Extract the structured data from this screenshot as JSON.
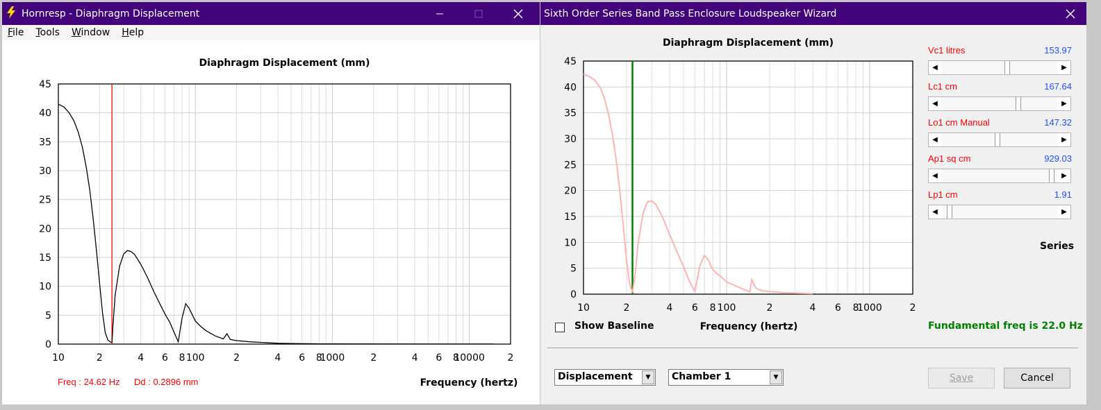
{
  "win1": {
    "title": "Hornresp - Diaphragm Displacement",
    "menu": [
      "File",
      "Tools",
      "Window",
      "Help"
    ],
    "chart_title": "Diaphragm Displacement (mm)",
    "x_label": "Frequency (hertz)",
    "readout_freq": "Freq : 24.62 Hz",
    "readout_dd": "Dd : 0.2896 mm"
  },
  "win2": {
    "title": "Sixth Order Series Band Pass Enclosure Loudspeaker Wizard",
    "chart_title": "Diaphragm Displacement (mm)",
    "x_label": "Frequency (hertz)",
    "show_baseline": "Show Baseline",
    "params": [
      {
        "label": "Vc1  litres",
        "value": "153.97",
        "fraction": 0.57
      },
      {
        "label": "Lc1  cm",
        "value": "167.64",
        "fraction": 0.67
      },
      {
        "label": "Lo1  cm  Manual",
        "value": "147.32",
        "fraction": 0.48
      },
      {
        "label": "Ap1  sq cm",
        "value": "929.03",
        "fraction": 0.97
      },
      {
        "label": "Lp1  cm",
        "value": "1.91",
        "fraction": 0.05
      }
    ],
    "series_label": "Series",
    "fundamental": "Fundamental freq is 22.0 Hz",
    "dropdown_left": "Displacement",
    "dropdown_right": "Chamber 1",
    "save_label": "Save",
    "cancel_label": "Cancel"
  },
  "chart_data": [
    {
      "type": "line",
      "title": "Diaphragm Displacement (mm)",
      "xlabel": "Frequency (hertz)",
      "ylabel": "",
      "xscale": "log",
      "xlim": [
        10,
        20000
      ],
      "ylim": [
        0,
        45
      ],
      "y_ticks": [
        0,
        5,
        10,
        15,
        20,
        25,
        30,
        35,
        40,
        45
      ],
      "x_tick_labels": [
        "10",
        "2",
        "4",
        "6",
        "8",
        "100",
        "2",
        "4",
        "6",
        "8",
        "1000",
        "2",
        "4",
        "6",
        "8",
        "10000",
        "2"
      ],
      "marker_line_hz": 24.62,
      "colors": {
        "line": "#000000",
        "marker": "#ff0000"
      },
      "series": [
        {
          "x": [
            10,
            11,
            12,
            13,
            14,
            15,
            16,
            17,
            18,
            19,
            20,
            21,
            22,
            23,
            24,
            24.62,
            25,
            26,
            28,
            30,
            32,
            34,
            36,
            40,
            45,
            50,
            55,
            60,
            65,
            70,
            75,
            80,
            85,
            90,
            100,
            110,
            120,
            140,
            160,
            170,
            175,
            180,
            200,
            250,
            300,
            400,
            500,
            800,
            1000,
            2000,
            5000,
            10000,
            15000
          ],
          "y": [
            41.5,
            41,
            40,
            38.6,
            36.6,
            34,
            30.5,
            26.5,
            21.5,
            16,
            10.5,
            5.5,
            2,
            0.7,
            0.35,
            0.29,
            3,
            8.5,
            13.5,
            15.6,
            16.2,
            16,
            15.5,
            13.8,
            11.4,
            9,
            7,
            5.2,
            3.8,
            2,
            0.4,
            4.5,
            7,
            6.2,
            4,
            3,
            2.3,
            1.4,
            0.9,
            1.8,
            1.3,
            0.8,
            0.6,
            0.4,
            0.3,
            0.15,
            0.1,
            0.05,
            0.04,
            0.02,
            0.01,
            0.01,
            0.01
          ]
        }
      ]
    },
    {
      "type": "line",
      "title": "Diaphragm Displacement (mm)",
      "xlabel": "Frequency (hertz)",
      "ylabel": "",
      "xscale": "log",
      "xlim": [
        10,
        2000
      ],
      "ylim": [
        0,
        45
      ],
      "y_ticks": [
        0,
        5,
        10,
        15,
        20,
        25,
        30,
        35,
        40,
        45
      ],
      "x_tick_labels": [
        "10",
        "2",
        "4",
        "6",
        "8",
        "100",
        "2",
        "4",
        "6",
        "8",
        "1000",
        "2"
      ],
      "marker_line_hz": 22.0,
      "colors": {
        "line": "#ffb3b3",
        "marker": "#008000"
      },
      "series": [
        {
          "x": [
            10,
            11,
            12,
            13,
            14,
            15,
            16,
            17,
            18,
            19,
            20,
            21,
            22,
            23,
            24,
            26,
            28,
            30,
            32,
            34,
            36,
            40,
            45,
            50,
            55,
            60,
            62,
            65,
            70,
            75,
            78,
            80,
            85,
            90,
            100,
            120,
            140,
            145,
            150,
            155,
            160,
            170,
            180,
            200,
            250,
            300,
            350,
            400
          ],
          "y": [
            42.5,
            42,
            41.3,
            40,
            37.8,
            34.6,
            30.5,
            25.5,
            19.5,
            13,
            6.5,
            2,
            0.3,
            4,
            9.5,
            15.5,
            17.8,
            18,
            17.3,
            16,
            14.6,
            11.5,
            8.2,
            5.3,
            2.5,
            0.5,
            2.5,
            5.5,
            7.5,
            6.5,
            5.3,
            4.8,
            4,
            3.5,
            2.4,
            1.4,
            0.6,
            0.4,
            2.8,
            2,
            1.2,
            0.8,
            0.6,
            0.5,
            0.3,
            0.2,
            0.15,
            0.1
          ]
        }
      ]
    }
  ]
}
